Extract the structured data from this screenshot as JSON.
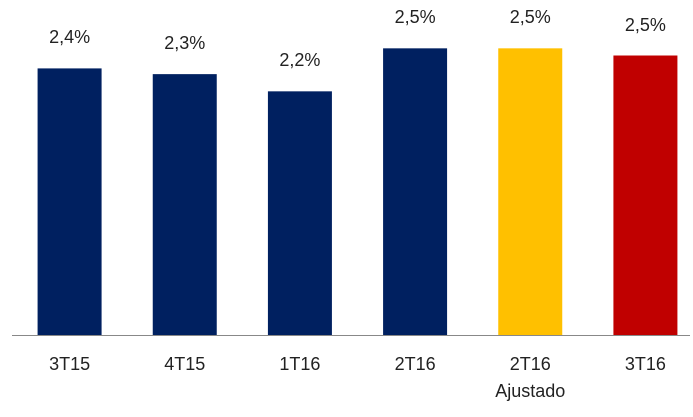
{
  "chart_data": {
    "type": "bar",
    "categories": [
      "3T15",
      "4T15",
      "1T16",
      "2T16",
      "2T16\nAjustado",
      "3T16"
    ],
    "values": [
      2.36,
      2.32,
      2.2,
      2.5,
      2.5,
      2.45
    ],
    "value_labels": [
      "2,4%",
      "2,3%",
      "2,2%",
      "2,5%",
      "2,5%",
      "2,5%"
    ],
    "colors": [
      "#002060",
      "#002060",
      "#002060",
      "#002060",
      "#ffc000",
      "#c00000"
    ],
    "ylim": [
      0.5,
      2.6
    ]
  }
}
